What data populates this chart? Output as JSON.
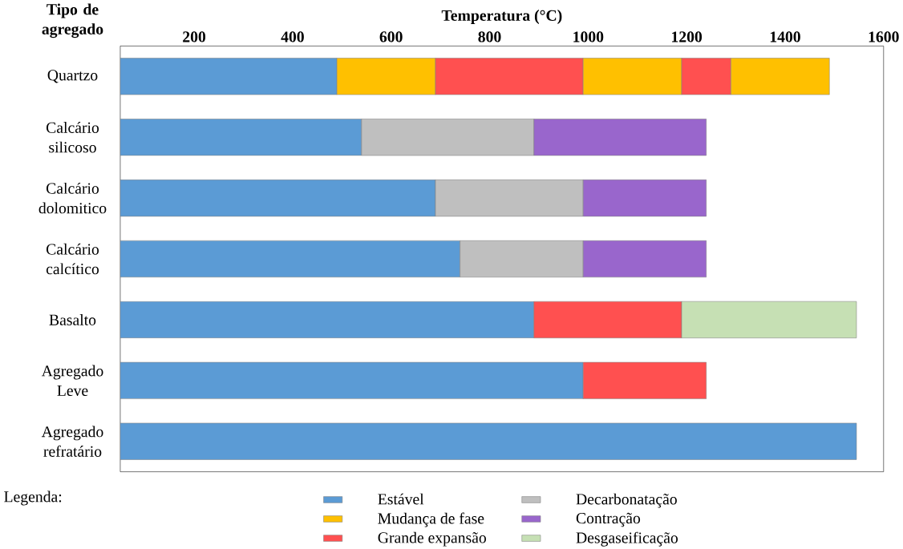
{
  "chart_data": {
    "type": "bar",
    "orientation": "horizontal",
    "xlabel": "Temperatura (°C)",
    "ylabel": "Tipo de agregado",
    "legend_title": "Legenda:",
    "legend": "bottom",
    "categories": [
      "Quartzo",
      "Calcário silicoso",
      "Calcário dolomitico",
      "Calcário calcítico",
      "Basalto",
      "Agregado Leve",
      "Agregado refratário"
    ],
    "xlim": [
      50,
      1600
    ],
    "xticks": [
      200,
      400,
      600,
      800,
      1000,
      1200,
      1400,
      1600
    ],
    "series": [
      {
        "name": "Estável",
        "color": "#5b9bd5",
        "base": [
          50,
          50,
          50,
          50,
          50,
          50,
          50
        ],
        "values": [
          440,
          490,
          640,
          690,
          840,
          940,
          1495
        ]
      },
      {
        "name": "Decarbonatação",
        "color": "#bfbfbf",
        "base": [
          null,
          540,
          690,
          740,
          null,
          null,
          null
        ],
        "values": [
          null,
          350,
          300,
          250,
          null,
          null,
          null
        ]
      },
      {
        "name": "Mudança de fase",
        "color": "#ffc000",
        "base": [
          490,
          null,
          null,
          null,
          null,
          null,
          null
        ],
        "values": [
          200,
          null,
          null,
          null,
          null,
          null,
          null
        ]
      },
      {
        "name": "Contração",
        "color": "#9966cc",
        "base": [
          null,
          890,
          990,
          990,
          null,
          null,
          null
        ],
        "values": [
          null,
          350,
          250,
          250,
          null,
          null,
          null
        ]
      },
      {
        "name": "Grande expansão",
        "color": "#ff5050",
        "base": [
          690,
          null,
          null,
          null,
          890,
          990,
          null
        ],
        "values": [
          300,
          null,
          null,
          null,
          300,
          250,
          null
        ]
      },
      {
        "name": "Desgaseificação",
        "color": "#c6e0b4",
        "base": [
          null,
          null,
          null,
          null,
          1190,
          null,
          null
        ],
        "values": [
          null,
          null,
          null,
          null,
          355,
          null,
          null
        ]
      },
      {
        "color": "#ffc000",
        "base": [
          990,
          null,
          null,
          null,
          null,
          null,
          null
        ],
        "values": [
          200,
          null,
          null,
          null,
          null,
          null,
          null
        ]
      },
      {
        "color": "#ff5050",
        "base": [
          1190,
          null,
          null,
          null,
          null,
          null,
          null
        ],
        "values": [
          100,
          null,
          null,
          null,
          null,
          null,
          null
        ]
      },
      {
        "color": "#ffc000",
        "base": [
          1290,
          null,
          null,
          null,
          null,
          null,
          null
        ],
        "values": [
          200,
          null,
          null,
          null,
          null,
          null,
          null
        ]
      }
    ]
  }
}
